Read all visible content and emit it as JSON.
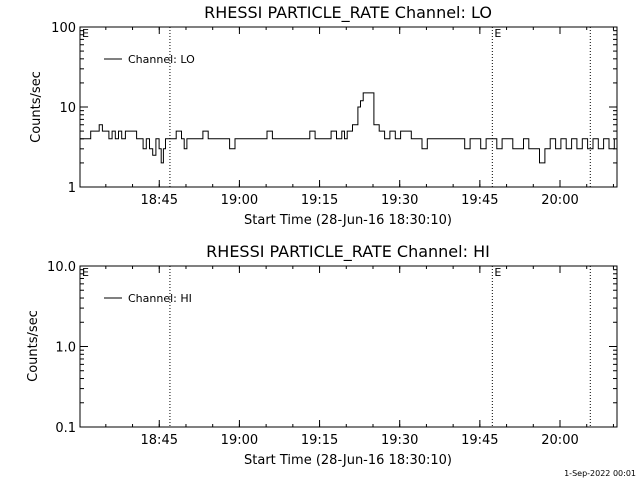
{
  "footer": {
    "date": "1-Sep-2022 00:01"
  },
  "chart_data": [
    {
      "type": "line",
      "title": "RHESSI PARTICLE_RATE Channel: LO",
      "xlabel": "Start Time (28-Jun-16 18:30:10)",
      "ylabel": "Counts/sec",
      "yscale": "log",
      "ylim": [
        1,
        100
      ],
      "xlim": [
        "18:30:10",
        "20:10:40"
      ],
      "x_ticks": [
        "18:45",
        "19:00",
        "19:15",
        "19:30",
        "19:45",
        "20:00"
      ],
      "y_ticks": [
        "1",
        "10",
        "100"
      ],
      "grid": false,
      "legend_position": "top-left",
      "event_lines": [
        {
          "x": "18:47:00",
          "label": ""
        },
        {
          "x": "19:47:20",
          "label": "E"
        },
        {
          "x": "20:05:40",
          "label": ""
        }
      ],
      "left_edge_label": "E",
      "series": [
        {
          "name": "Channel: LO",
          "x_unit": "minutes since 18:30:10",
          "x": [
            0,
            1,
            2,
            3,
            3.6,
            4.2,
            4.8,
            5.4,
            6,
            6.6,
            7.2,
            7.8,
            8,
            8.5,
            9.5,
            10,
            10.6,
            11.2,
            11.8,
            12.4,
            13,
            13.6,
            14.2,
            14.8,
            15.2,
            15.6,
            16,
            16.5,
            17,
            18,
            19,
            19.5,
            20,
            21,
            22,
            23,
            24,
            25,
            26,
            27,
            28,
            29,
            30,
            31,
            32,
            33,
            34,
            35,
            36,
            37,
            38,
            39,
            40,
            41,
            42,
            43,
            44,
            45,
            46,
            47,
            48,
            49,
            49.5,
            50,
            51,
            52,
            52.5,
            53,
            54,
            55,
            56,
            57,
            58,
            59,
            60,
            61,
            62,
            63,
            64,
            65,
            66,
            67,
            68,
            69,
            70,
            71,
            72,
            73,
            74,
            75,
            76,
            77,
            78,
            79,
            80,
            81,
            82,
            83,
            84,
            85,
            86,
            87,
            88,
            89,
            90,
            91,
            92,
            93,
            94,
            95,
            96,
            97,
            98,
            99,
            100
          ],
          "y": [
            4,
            4,
            5,
            5,
            6,
            5,
            5,
            4,
            5,
            4,
            5,
            4,
            4,
            5,
            5,
            5,
            4,
            4,
            3,
            4,
            3,
            2.5,
            4,
            3,
            2,
            3,
            4,
            4,
            4,
            5,
            4,
            3,
            4,
            4,
            4,
            5,
            4,
            4,
            4,
            4,
            3,
            4,
            4,
            4,
            4,
            4,
            4,
            5,
            4,
            4,
            4,
            4,
            4,
            4,
            4,
            5,
            4,
            4,
            4,
            5,
            4,
            5,
            4,
            5,
            6,
            10,
            12,
            15,
            15,
            6,
            5,
            4,
            5,
            4,
            5,
            5,
            4,
            4,
            3,
            4,
            4,
            4,
            4,
            4,
            4,
            4,
            3,
            4,
            4,
            3,
            4,
            4,
            3,
            4,
            4,
            3,
            3,
            4,
            3,
            3,
            2,
            3,
            4,
            3,
            4,
            3,
            4,
            3,
            4,
            3,
            4,
            3,
            4,
            3,
            4
          ],
          "color": "#000000"
        }
      ]
    },
    {
      "type": "line",
      "title": "RHESSI PARTICLE_RATE Channel: HI",
      "xlabel": "Start Time (28-Jun-16 18:30:10)",
      "ylabel": "Counts/sec",
      "yscale": "log",
      "ylim": [
        0.1,
        10
      ],
      "xlim": [
        "18:30:10",
        "20:10:40"
      ],
      "x_ticks": [
        "18:45",
        "19:00",
        "19:15",
        "19:30",
        "19:45",
        "20:00"
      ],
      "y_ticks": [
        "0.1",
        "1.0",
        "10.0"
      ],
      "grid": false,
      "legend_position": "top-left",
      "event_lines": [
        {
          "x": "18:47:00",
          "label": ""
        },
        {
          "x": "19:47:20",
          "label": "E"
        },
        {
          "x": "20:05:40",
          "label": ""
        }
      ],
      "left_edge_label": "E",
      "series": [
        {
          "name": "Channel: HI",
          "x": [],
          "y": [],
          "color": "#000000"
        }
      ]
    }
  ]
}
